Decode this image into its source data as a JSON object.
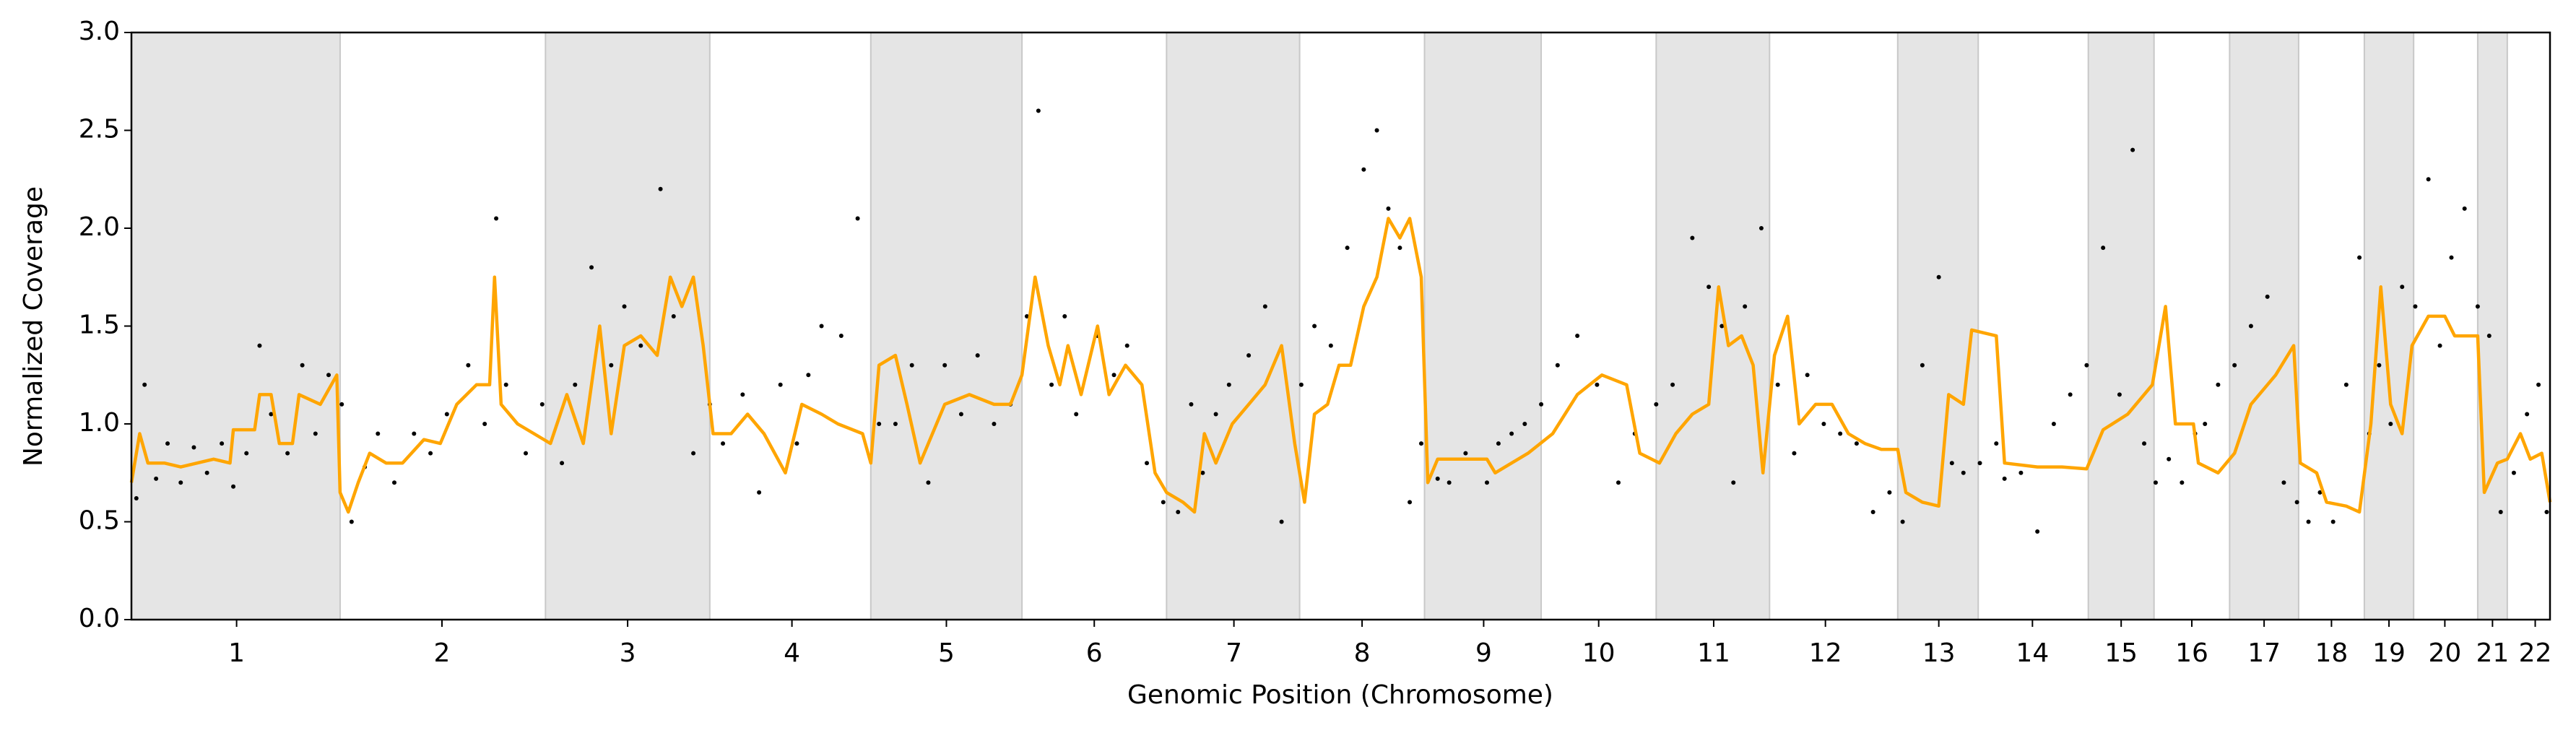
{
  "chart_data": {
    "type": "line",
    "x_label": "Genomic Position (Chromosome)",
    "y_label": "Normalized Coverage",
    "xlim": [
      0,
      1472
    ],
    "ylim": [
      0,
      3
    ],
    "yticks": [
      {
        "value": 0,
        "label": "0.0"
      },
      0.5,
      {
        "value": 1,
        "label": "1.0"
      },
      1.5,
      {
        "value": 2,
        "label": "2.0"
      },
      2.5,
      {
        "value": 3,
        "label": "3.0"
      }
    ],
    "xticks": [
      {
        "value": 64,
        "label": "1"
      },
      {
        "value": 189,
        "label": "2"
      },
      {
        "value": 302,
        "label": "3"
      },
      {
        "value": 402,
        "label": "4"
      },
      {
        "value": 496,
        "label": "5"
      },
      {
        "value": 586,
        "label": "6"
      },
      {
        "value": 671,
        "label": "7"
      },
      {
        "value": 749,
        "label": "8"
      },
      {
        "value": 823,
        "label": "9"
      },
      {
        "value": 893,
        "label": "10"
      },
      {
        "value": 963,
        "label": "11"
      },
      {
        "value": 1031,
        "label": "12"
      },
      {
        "value": 1100,
        "label": "13"
      },
      {
        "value": 1157,
        "label": "14"
      },
      {
        "value": 1211,
        "label": "15"
      },
      {
        "value": 1254,
        "label": "16"
      },
      {
        "value": 1298,
        "label": "17"
      },
      {
        "value": 1339,
        "label": "18"
      },
      {
        "value": 1374,
        "label": "19"
      },
      {
        "value": 1408,
        "label": "20"
      },
      {
        "value": 1437,
        "label": "21"
      },
      {
        "value": 1463,
        "label": "22"
      }
    ],
    "shaded_regions": [
      [
        0,
        127
      ],
      [
        252,
        352
      ],
      [
        450,
        542
      ],
      [
        630,
        711
      ],
      [
        787,
        858
      ],
      [
        928,
        997
      ],
      [
        1075,
        1124
      ],
      [
        1191,
        1231
      ],
      [
        1277,
        1319
      ],
      [
        1359,
        1389
      ],
      [
        1428,
        1446
      ]
    ],
    "shade_color": "#e5e5e5",
    "series": [
      {
        "type": "scatter",
        "color": "#000000",
        "x": [
          3,
          8,
          15,
          22,
          30,
          38,
          46,
          55,
          62,
          70,
          78,
          85,
          95,
          104,
          112,
          120,
          128,
          134,
          142,
          150,
          160,
          172,
          182,
          192,
          205,
          215,
          222,
          228,
          240,
          250,
          262,
          270,
          280,
          292,
          300,
          310,
          322,
          330,
          342,
          352,
          360,
          372,
          382,
          395,
          405,
          412,
          420,
          432,
          442,
          455,
          465,
          475,
          485,
          495,
          505,
          515,
          525,
          535,
          545,
          552,
          560,
          568,
          575,
          588,
          598,
          606,
          618,
          628,
          637,
          645,
          652,
          660,
          668,
          680,
          690,
          700,
          712,
          720,
          730,
          740,
          750,
          758,
          765,
          772,
          778,
          785,
          795,
          802,
          812,
          825,
          832,
          840,
          848,
          858,
          868,
          880,
          892,
          905,
          915,
          928,
          938,
          950,
          960,
          968,
          975,
          982,
          992,
          1002,
          1012,
          1020,
          1030,
          1040,
          1050,
          1060,
          1070,
          1078,
          1090,
          1100,
          1108,
          1115,
          1125,
          1135,
          1140,
          1150,
          1160,
          1170,
          1180,
          1190,
          1200,
          1210,
          1218,
          1225,
          1232,
          1240,
          1248,
          1256,
          1262,
          1270,
          1280,
          1290,
          1300,
          1310,
          1318,
          1325,
          1332,
          1340,
          1348,
          1356,
          1362,
          1368,
          1375,
          1382,
          1390,
          1398,
          1405,
          1412,
          1420,
          1428,
          1435,
          1442,
          1450,
          1458,
          1465,
          1470
        ],
        "values": [
          0.62,
          1.2,
          0.72,
          0.9,
          0.7,
          0.88,
          0.75,
          0.9,
          0.68,
          0.85,
          1.4,
          1.05,
          0.85,
          1.3,
          0.95,
          1.25,
          1.1,
          0.5,
          0.78,
          0.95,
          0.7,
          0.95,
          0.85,
          1.05,
          1.3,
          1.0,
          2.05,
          1.2,
          0.85,
          1.1,
          0.8,
          1.2,
          1.8,
          1.3,
          1.6,
          1.4,
          2.2,
          1.55,
          0.85,
          1.1,
          0.9,
          1.15,
          0.65,
          1.2,
          0.9,
          1.25,
          1.5,
          1.45,
          2.05,
          1.0,
          1.0,
          1.3,
          0.7,
          1.3,
          1.05,
          1.35,
          1.0,
          1.1,
          1.55,
          2.6,
          1.2,
          1.55,
          1.05,
          1.45,
          1.25,
          1.4,
          0.8,
          0.6,
          0.55,
          1.1,
          0.75,
          1.05,
          1.2,
          1.35,
          1.6,
          0.5,
          1.2,
          1.5,
          1.4,
          1.9,
          2.3,
          2.5,
          2.1,
          1.9,
          0.6,
          0.9,
          0.72,
          0.7,
          0.85,
          0.7,
          0.9,
          0.95,
          1.0,
          1.1,
          1.3,
          1.45,
          1.2,
          0.7,
          0.95,
          1.1,
          1.2,
          1.95,
          1.7,
          1.5,
          0.7,
          1.6,
          2.0,
          1.2,
          0.85,
          1.25,
          1.0,
          0.95,
          0.9,
          0.55,
          0.65,
          0.5,
          1.3,
          1.75,
          0.8,
          0.75,
          0.8,
          0.9,
          0.72,
          0.75,
          0.45,
          1.0,
          1.15,
          1.3,
          1.9,
          1.15,
          2.4,
          0.9,
          0.7,
          0.82,
          0.7,
          0.95,
          1.0,
          1.2,
          1.3,
          1.5,
          1.65,
          0.7,
          0.6,
          0.5,
          0.65,
          0.5,
          1.2,
          1.85,
          0.95,
          1.3,
          1.0,
          1.7,
          1.6,
          2.25,
          1.4,
          1.85,
          2.1,
          1.6,
          1.45,
          0.55,
          0.75,
          1.05,
          1.2,
          0.55
        ]
      },
      {
        "type": "line",
        "color": "#ffa500",
        "x": [
          0,
          5,
          10,
          20,
          30,
          40,
          50,
          60,
          62,
          75,
          78,
          85,
          90,
          98,
          102,
          115,
          125,
          127,
          132,
          138,
          145,
          155,
          165,
          178,
          188,
          198,
          210,
          218,
          221,
          225,
          235,
          245,
          255,
          265,
          275,
          285,
          292,
          300,
          310,
          320,
          328,
          335,
          342,
          348,
          354,
          365,
          375,
          385,
          398,
          408,
          420,
          430,
          445,
          450,
          455,
          465,
          472,
          480,
          495,
          510,
          525,
          535,
          542,
          550,
          558,
          565,
          570,
          578,
          588,
          595,
          605,
          615,
          623,
          630,
          640,
          647,
          653,
          660,
          670,
          680,
          690,
          700,
          708,
          714,
          720,
          728,
          735,
          742,
          750,
          758,
          765,
          772,
          778,
          785,
          789,
          795,
          825,
          830,
          840,
          850,
          865,
          880,
          895,
          910,
          918,
          930,
          940,
          950,
          960,
          966,
          972,
          980,
          987,
          993,
          1000,
          1008,
          1015,
          1025,
          1035,
          1045,
          1055,
          1065,
          1075,
          1080,
          1090,
          1100,
          1106,
          1115,
          1120,
          1135,
          1140,
          1160,
          1175,
          1190,
          1200,
          1215,
          1230,
          1238,
          1244,
          1255,
          1258,
          1270,
          1280,
          1290,
          1305,
          1316,
          1320,
          1330,
          1336,
          1348,
          1356,
          1363,
          1369,
          1375,
          1382,
          1388,
          1398,
          1408,
          1414,
          1420,
          1428,
          1432,
          1440,
          1446,
          1454,
          1460,
          1467,
          1472
        ],
        "values": [
          0.7,
          0.95,
          0.8,
          0.8,
          0.78,
          0.8,
          0.82,
          0.8,
          0.97,
          0.97,
          1.15,
          1.15,
          0.9,
          0.9,
          1.15,
          1.1,
          1.25,
          0.65,
          0.55,
          0.7,
          0.85,
          0.8,
          0.8,
          0.92,
          0.9,
          1.1,
          1.2,
          1.2,
          1.75,
          1.1,
          1.0,
          0.95,
          0.9,
          1.15,
          0.9,
          1.5,
          0.95,
          1.4,
          1.45,
          1.35,
          1.75,
          1.6,
          1.75,
          1.4,
          0.95,
          0.95,
          1.05,
          0.95,
          0.75,
          1.1,
          1.05,
          1.0,
          0.95,
          0.8,
          1.3,
          1.35,
          1.1,
          0.8,
          1.1,
          1.15,
          1.1,
          1.1,
          1.25,
          1.75,
          1.4,
          1.2,
          1.4,
          1.15,
          1.5,
          1.15,
          1.3,
          1.2,
          0.75,
          0.65,
          0.6,
          0.55,
          0.95,
          0.8,
          1.0,
          1.1,
          1.2,
          1.4,
          0.9,
          0.6,
          1.05,
          1.1,
          1.3,
          1.3,
          1.6,
          1.75,
          2.05,
          1.95,
          2.05,
          1.75,
          0.7,
          0.82,
          0.82,
          0.75,
          0.8,
          0.85,
          0.95,
          1.15,
          1.25,
          1.2,
          0.85,
          0.8,
          0.95,
          1.05,
          1.1,
          1.7,
          1.4,
          1.45,
          1.3,
          0.75,
          1.35,
          1.55,
          1.0,
          1.1,
          1.1,
          0.95,
          0.9,
          0.87,
          0.87,
          0.65,
          0.6,
          0.58,
          1.15,
          1.1,
          1.48,
          1.45,
          0.8,
          0.78,
          0.78,
          0.77,
          0.97,
          1.05,
          1.2,
          1.6,
          1.0,
          1.0,
          0.8,
          0.75,
          0.85,
          1.1,
          1.25,
          1.4,
          0.8,
          0.75,
          0.6,
          0.58,
          0.55,
          1.0,
          1.7,
          1.1,
          0.95,
          1.4,
          1.55,
          1.55,
          1.45,
          1.45,
          1.45,
          0.65,
          0.8,
          0.82,
          0.95,
          0.82,
          0.85,
          0.6
        ]
      }
    ]
  }
}
